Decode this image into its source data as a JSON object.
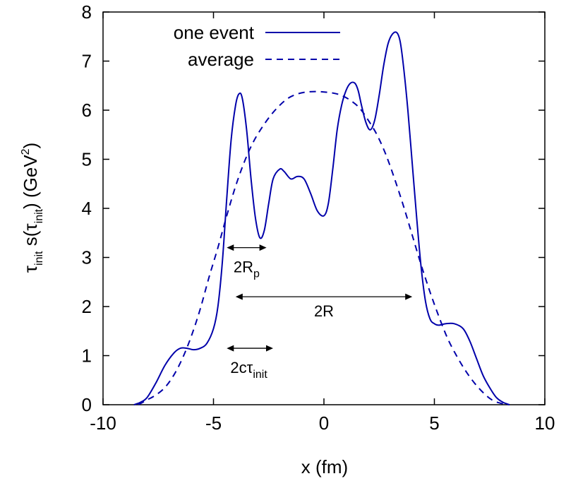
{
  "chart_data": {
    "type": "line",
    "xlabel": "x (fm)",
    "ylabel_parts": {
      "tau": "τ",
      "sub1": "init",
      "s_open": " s(τ",
      "sub2": "init",
      "close_unit": ") (GeV",
      "sup": "2",
      "close": ")"
    },
    "xlim": [
      -10,
      10
    ],
    "ylim": [
      0,
      8
    ],
    "xticks": [
      -10,
      -5,
      0,
      5,
      10
    ],
    "yticks": [
      0,
      1,
      2,
      3,
      4,
      5,
      6,
      7,
      8
    ],
    "xtick_labels": [
      "-10",
      "-5",
      "0",
      "5",
      "10"
    ],
    "ytick_labels": [
      "0",
      "1",
      "2",
      "3",
      "4",
      "5",
      "6",
      "7",
      "8"
    ],
    "grid": false,
    "legend_position": "top-left",
    "line_color": "#0000aa",
    "series": [
      {
        "name": "one event",
        "style": "solid",
        "x": [
          -8.6,
          -8.3,
          -8.0,
          -7.6,
          -7.2,
          -6.8,
          -6.5,
          -6.2,
          -5.9,
          -5.6,
          -5.3,
          -5.0,
          -4.8,
          -4.6,
          -4.4,
          -4.2,
          -4.0,
          -3.85,
          -3.7,
          -3.5,
          -3.3,
          -3.1,
          -2.9,
          -2.7,
          -2.5,
          -2.3,
          -2.0,
          -1.8,
          -1.5,
          -1.2,
          -0.9,
          -0.6,
          -0.3,
          0.0,
          0.2,
          0.4,
          0.6,
          0.8,
          1.0,
          1.2,
          1.4,
          1.55,
          1.7,
          1.9,
          2.1,
          2.3,
          2.5,
          2.7,
          2.9,
          3.1,
          3.3,
          3.45,
          3.6,
          3.8,
          4.0,
          4.2,
          4.4,
          4.6,
          4.8,
          5.0,
          5.2,
          5.5,
          5.9,
          6.3,
          6.6,
          6.9,
          7.2,
          7.5,
          7.8,
          8.1,
          8.4
        ],
        "y": [
          0.0,
          0.05,
          0.15,
          0.45,
          0.8,
          1.05,
          1.15,
          1.15,
          1.12,
          1.15,
          1.25,
          1.55,
          2.0,
          2.9,
          4.2,
          5.4,
          6.1,
          6.33,
          6.25,
          5.6,
          4.6,
          3.8,
          3.4,
          3.55,
          4.1,
          4.6,
          4.8,
          4.75,
          4.6,
          4.65,
          4.6,
          4.3,
          3.95,
          3.85,
          4.1,
          4.8,
          5.6,
          6.1,
          6.4,
          6.55,
          6.55,
          6.4,
          6.1,
          5.75,
          5.6,
          5.8,
          6.3,
          6.9,
          7.35,
          7.55,
          7.58,
          7.4,
          6.9,
          6.0,
          4.9,
          3.8,
          2.8,
          2.1,
          1.75,
          1.65,
          1.62,
          1.65,
          1.65,
          1.55,
          1.3,
          0.95,
          0.6,
          0.35,
          0.15,
          0.05,
          0.0
        ]
      },
      {
        "name": "average",
        "style": "dashed",
        "x": [
          -8.4,
          -8.0,
          -7.6,
          -7.2,
          -6.8,
          -6.4,
          -6.0,
          -5.6,
          -5.2,
          -4.8,
          -4.4,
          -4.0,
          -3.6,
          -3.2,
          -2.8,
          -2.4,
          -2.0,
          -1.6,
          -1.2,
          -0.8,
          -0.4,
          0.0,
          0.4,
          0.8,
          1.2,
          1.6,
          2.0,
          2.4,
          2.8,
          3.2,
          3.6,
          4.0,
          4.4,
          4.8,
          5.2,
          5.6,
          6.0,
          6.4,
          6.8,
          7.2,
          7.6,
          8.0,
          8.4
        ],
        "y": [
          0.0,
          0.1,
          0.2,
          0.35,
          0.6,
          0.95,
          1.4,
          1.95,
          2.6,
          3.2,
          3.85,
          4.45,
          4.95,
          5.35,
          5.65,
          5.9,
          6.1,
          6.25,
          6.33,
          6.37,
          6.38,
          6.37,
          6.35,
          6.3,
          6.2,
          6.05,
          5.8,
          5.5,
          5.1,
          4.6,
          4.05,
          3.45,
          2.85,
          2.3,
          1.8,
          1.35,
          1.0,
          0.7,
          0.45,
          0.25,
          0.1,
          0.03,
          0.0
        ]
      }
    ],
    "annotations": [
      {
        "id": "2Rp",
        "x1": -4.4,
        "x2": -2.6,
        "y": 3.2,
        "label_main": "2R",
        "label_sub": "p",
        "label_x": -3.5,
        "label_y": 2.7
      },
      {
        "id": "2R",
        "x1": -4.0,
        "x2": 4.0,
        "y": 2.2,
        "label_main": "2R",
        "label_sub": "",
        "label_x": 0.0,
        "label_y": 1.8
      },
      {
        "id": "2ctau",
        "x1": -4.4,
        "x2": -2.3,
        "y": 1.15,
        "label_main": "2cτ",
        "label_sub": "init",
        "label_x": -3.4,
        "label_y": 0.65
      }
    ]
  }
}
